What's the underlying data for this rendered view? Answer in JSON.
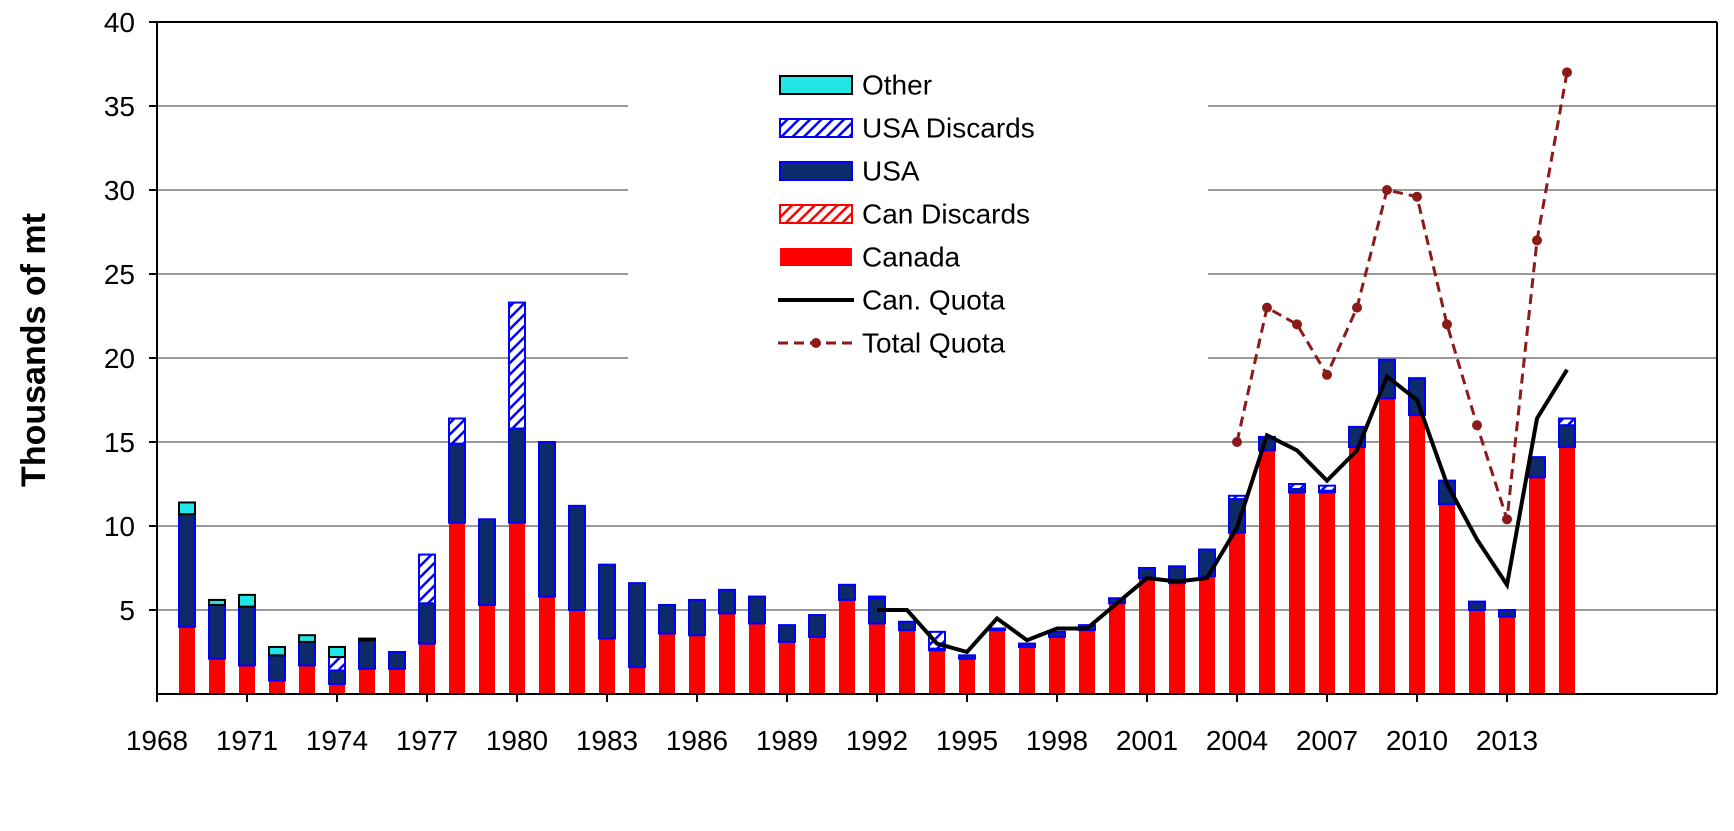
{
  "chart_data": {
    "type": "bar",
    "y_label": "Thousands of mt",
    "x": [
      1969,
      1970,
      1971,
      1972,
      1973,
      1974,
      1975,
      1976,
      1977,
      1978,
      1979,
      1980,
      1981,
      1982,
      1983,
      1984,
      1985,
      1986,
      1987,
      1988,
      1989,
      1990,
      1991,
      1992,
      1993,
      1994,
      1995,
      1996,
      1997,
      1998,
      1999,
      2000,
      2001,
      2002,
      2003,
      2004,
      2005,
      2006,
      2007,
      2008,
      2009,
      2010,
      2011,
      2012,
      2013,
      2014,
      2015
    ],
    "xlim": [
      1968,
      2020
    ],
    "xticks": [
      1968,
      1971,
      1974,
      1977,
      1980,
      1983,
      1986,
      1989,
      1992,
      1995,
      1998,
      2001,
      2004,
      2007,
      2010,
      2013
    ],
    "ylim": [
      0,
      40
    ],
    "yticks": [
      5,
      10,
      15,
      20,
      25,
      30,
      35,
      40
    ],
    "grid": true,
    "series": [
      {
        "name": "Canada",
        "type": "bar",
        "color": "#ff0000",
        "values": [
          4.0,
          2.1,
          1.7,
          0.8,
          1.7,
          0.6,
          1.5,
          1.5,
          3.0,
          10.2,
          5.3,
          10.2,
          5.8,
          5.0,
          3.3,
          1.6,
          3.6,
          3.5,
          4.8,
          4.2,
          3.1,
          3.4,
          5.6,
          4.2,
          3.8,
          2.6,
          2.1,
          3.8,
          2.8,
          3.4,
          3.8,
          5.4,
          6.9,
          6.6,
          7.0,
          9.6,
          14.5,
          12.0,
          12.0,
          14.7,
          17.6,
          16.6,
          11.3,
          5.0,
          4.6,
          12.9,
          14.7
        ]
      },
      {
        "name": "Can Discards",
        "type": "bar",
        "color": "#ff0000",
        "hatch": true,
        "values": [
          0,
          0,
          0,
          0,
          0,
          0,
          0,
          0,
          0,
          0,
          0,
          0,
          0,
          0,
          0,
          0,
          0,
          0,
          0,
          0,
          0,
          0,
          0,
          0,
          0,
          0,
          0,
          0,
          0,
          0,
          0,
          0,
          0,
          0,
          0,
          0,
          0,
          0,
          0,
          0,
          0,
          0,
          0,
          0,
          0,
          0,
          0
        ]
      },
      {
        "name": "USA",
        "type": "bar",
        "color": "#0d2a6b",
        "values": [
          6.7,
          3.2,
          3.5,
          1.5,
          1.4,
          0.8,
          1.7,
          1.0,
          2.4,
          4.7,
          5.1,
          5.6,
          9.2,
          6.2,
          4.4,
          5.0,
          1.7,
          2.1,
          1.4,
          1.6,
          1.0,
          1.3,
          0.9,
          1.5,
          0.5,
          0.1,
          0.2,
          0.1,
          0.2,
          0.3,
          0.3,
          0.3,
          0.6,
          1.0,
          1.6,
          2.0,
          0.7,
          0.2,
          0.1,
          1.2,
          2.3,
          2.2,
          1.4,
          0.5,
          0.4,
          1.2,
          1.3
        ]
      },
      {
        "name": "USA Discards",
        "type": "bar",
        "color": "#0000ff",
        "hatch": true,
        "values": [
          0,
          0,
          0,
          0,
          0,
          0.8,
          0,
          0,
          2.9,
          1.5,
          0,
          7.5,
          0,
          0,
          0,
          0,
          0,
          0,
          0,
          0,
          0,
          0,
          0,
          0.1,
          0,
          1.0,
          0,
          0,
          0,
          0,
          0,
          0,
          0,
          0,
          0,
          0.2,
          0.1,
          0.3,
          0.3,
          0,
          0,
          0,
          0,
          0,
          0,
          0,
          0.4
        ]
      },
      {
        "name": "Other",
        "type": "bar",
        "color": "#22e6e6",
        "values": [
          0.7,
          0.3,
          0.7,
          0.5,
          0.4,
          0.6,
          0.1,
          0,
          0,
          0,
          0,
          0,
          0,
          0,
          0,
          0,
          0,
          0,
          0,
          0,
          0,
          0,
          0,
          0,
          0,
          0,
          0,
          0,
          0,
          0,
          0,
          0,
          0,
          0,
          0,
          0,
          0,
          0,
          0,
          0,
          0,
          0,
          0,
          0,
          0,
          0,
          0
        ]
      },
      {
        "name": "Can. Quota",
        "type": "line",
        "color": "#000000",
        "values": [
          null,
          null,
          null,
          null,
          null,
          null,
          null,
          null,
          null,
          null,
          null,
          null,
          null,
          null,
          null,
          null,
          null,
          null,
          null,
          null,
          null,
          null,
          null,
          5.0,
          5.0,
          3.0,
          2.5,
          4.5,
          3.2,
          3.9,
          3.9,
          5.4,
          6.9,
          6.7,
          6.9,
          9.9,
          15.4,
          14.5,
          12.7,
          14.5,
          18.9,
          17.5,
          12.5,
          9.2,
          6.5,
          16.4,
          19.3
        ]
      },
      {
        "name": "Total Quota",
        "type": "line",
        "color": "#8b1a1a",
        "dashed": true,
        "markers": true,
        "values": [
          null,
          null,
          null,
          null,
          null,
          null,
          null,
          null,
          null,
          null,
          null,
          null,
          null,
          null,
          null,
          null,
          null,
          null,
          null,
          null,
          null,
          null,
          null,
          null,
          null,
          null,
          null,
          null,
          null,
          null,
          null,
          null,
          null,
          null,
          null,
          15,
          23,
          22,
          19,
          23,
          30,
          29.6,
          22,
          16,
          10.4,
          27,
          37
        ]
      }
    ]
  }
}
